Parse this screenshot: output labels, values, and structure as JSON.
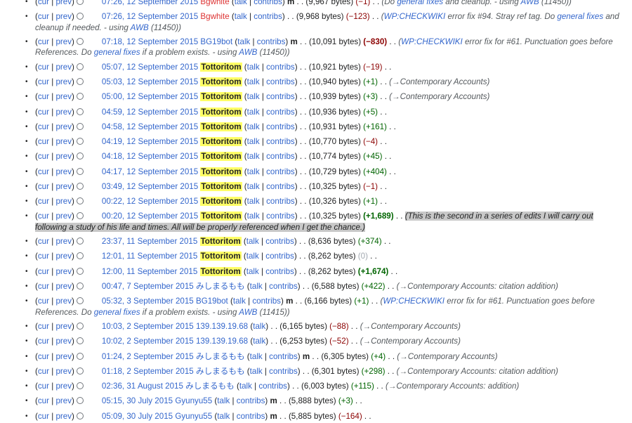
{
  "history": [
    {
      "cur": "cur",
      "prev": "prev",
      "time": "07:26, 12 September 2015",
      "user": "Bgwhite",
      "user_style": "red",
      "talk": "talk",
      "contribs": "contribs",
      "minor": "m",
      "size": "(9,967 bytes)",
      "diff": "(−1)",
      "diff_class": "neg",
      "summary": [
        {
          "t": "(Do "
        },
        {
          "t": "general fixes",
          "link": true
        },
        {
          "t": " and cleanup. - using "
        },
        {
          "t": "AWB",
          "link": true
        },
        {
          "t": " (11450))"
        }
      ]
    },
    {
      "cur": "cur",
      "prev": "prev",
      "time": "07:26, 12 September 2015",
      "user": "Bgwhite",
      "user_style": "red",
      "talk": "talk",
      "contribs": "contribs",
      "minor": "",
      "size": "(9,968 bytes)",
      "diff": "(−123)",
      "diff_class": "neg",
      "tall": true,
      "summary": [
        {
          "t": "("
        },
        {
          "t": "WP:CHECKWIKI",
          "link": true
        },
        {
          "t": " error fix #94. Stray ref tag. Do "
        },
        {
          "t": "general fixes",
          "link": true
        },
        {
          "t": " and cleanup if needed. - using "
        },
        {
          "t": "AWB",
          "link": true
        },
        {
          "t": " (11450))"
        }
      ]
    },
    {
      "cur": "cur",
      "prev": "prev",
      "time": "07:18, 12 September 2015",
      "user": "BG19bot",
      "user_style": "blue",
      "talk": "talk",
      "contribs": "contribs",
      "minor": "m",
      "size": "(10,091 bytes)",
      "diff": "(−830)",
      "diff_class": "bigneg",
      "tall": true,
      "summary": [
        {
          "t": "("
        },
        {
          "t": "WP:CHECKWIKI",
          "link": true
        },
        {
          "t": " error fix for #61. Punctuation goes before References. Do "
        },
        {
          "t": "general fixes",
          "link": true
        },
        {
          "t": " if a problem exists. - using "
        },
        {
          "t": "AWB",
          "link": true
        },
        {
          "t": " (11450))"
        }
      ]
    },
    {
      "cur": "cur",
      "prev": "prev",
      "time": "05:07, 12 September 2015",
      "user": "Tottoritom",
      "user_style": "hl",
      "talk": "talk",
      "contribs": "contribs",
      "minor": "",
      "size": "(10,921 bytes)",
      "diff": "(−19)",
      "diff_class": "neg",
      "summary": []
    },
    {
      "cur": "cur",
      "prev": "prev",
      "time": "05:03, 12 September 2015",
      "user": "Tottoritom",
      "user_style": "hl",
      "talk": "talk",
      "contribs": "contribs",
      "minor": "",
      "size": "(10,940 bytes)",
      "diff": "(+1)",
      "diff_class": "pos",
      "summary": [
        {
          "t": "(→Contemporary Accounts)"
        }
      ]
    },
    {
      "cur": "cur",
      "prev": "prev",
      "time": "05:00, 12 September 2015",
      "user": "Tottoritom",
      "user_style": "hl",
      "talk": "talk",
      "contribs": "contribs",
      "minor": "",
      "size": "(10,939 bytes)",
      "diff": "(+3)",
      "diff_class": "pos",
      "summary": [
        {
          "t": "(→Contemporary Accounts)"
        }
      ]
    },
    {
      "cur": "cur",
      "prev": "prev",
      "time": "04:59, 12 September 2015",
      "user": "Tottoritom",
      "user_style": "hl",
      "talk": "talk",
      "contribs": "contribs",
      "minor": "",
      "size": "(10,936 bytes)",
      "diff": "(+5)",
      "diff_class": "pos",
      "summary": []
    },
    {
      "cur": "cur",
      "prev": "prev",
      "time": "04:58, 12 September 2015",
      "user": "Tottoritom",
      "user_style": "hl",
      "talk": "talk",
      "contribs": "contribs",
      "minor": "",
      "size": "(10,931 bytes)",
      "diff": "(+161)",
      "diff_class": "pos",
      "summary": []
    },
    {
      "cur": "cur",
      "prev": "prev",
      "time": "04:19, 12 September 2015",
      "user": "Tottoritom",
      "user_style": "hl",
      "talk": "talk",
      "contribs": "contribs",
      "minor": "",
      "size": "(10,770 bytes)",
      "diff": "(−4)",
      "diff_class": "neg",
      "summary": []
    },
    {
      "cur": "cur",
      "prev": "prev",
      "time": "04:18, 12 September 2015",
      "user": "Tottoritom",
      "user_style": "hl",
      "talk": "talk",
      "contribs": "contribs",
      "minor": "",
      "size": "(10,774 bytes)",
      "diff": "(+45)",
      "diff_class": "pos",
      "summary": []
    },
    {
      "cur": "cur",
      "prev": "prev",
      "time": "04:17, 12 September 2015",
      "user": "Tottoritom",
      "user_style": "hl",
      "talk": "talk",
      "contribs": "contribs",
      "minor": "",
      "size": "(10,729 bytes)",
      "diff": "(+404)",
      "diff_class": "pos",
      "summary": []
    },
    {
      "cur": "cur",
      "prev": "prev",
      "time": "03:49, 12 September 2015",
      "user": "Tottoritom",
      "user_style": "hl",
      "talk": "talk",
      "contribs": "contribs",
      "minor": "",
      "size": "(10,325 bytes)",
      "diff": "(−1)",
      "diff_class": "neg",
      "summary": []
    },
    {
      "cur": "cur",
      "prev": "prev",
      "time": "00:22, 12 September 2015",
      "user": "Tottoritom",
      "user_style": "hl",
      "talk": "talk",
      "contribs": "contribs",
      "minor": "",
      "size": "(10,326 bytes)",
      "diff": "(+1)",
      "diff_class": "pos",
      "summary": []
    },
    {
      "cur": "cur",
      "prev": "prev",
      "time": "00:20, 12 September 2015",
      "user": "Tottoritom",
      "user_style": "hl",
      "talk": "talk",
      "contribs": "contribs",
      "minor": "",
      "size": "(10,325 bytes)",
      "diff": "(+1,689)",
      "diff_class": "bigpos",
      "tall": true,
      "summary": [
        {
          "t": "(This is the second in a series of edits I will carry out following a study of his life and times. All will be properly referenced when I get the chance.)",
          "sel": true
        }
      ]
    },
    {
      "cur": "cur",
      "prev": "prev",
      "time": "23:37, 11 September 2015",
      "user": "Tottoritom",
      "user_style": "hl",
      "talk": "talk",
      "contribs": "contribs",
      "minor": "",
      "size": "(8,636 bytes)",
      "diff": "(+374)",
      "diff_class": "pos",
      "summary": []
    },
    {
      "cur": "cur",
      "prev": "prev",
      "time": "12:01, 11 September 2015",
      "user": "Tottoritom",
      "user_style": "hl",
      "talk": "talk",
      "contribs": "contribs",
      "minor": "",
      "size": "(8,262 bytes)",
      "diff": "(0)",
      "diff_class": "zero",
      "summary": []
    },
    {
      "cur": "cur",
      "prev": "prev",
      "time": "12:00, 11 September 2015",
      "user": "Tottoritom",
      "user_style": "hl",
      "talk": "talk",
      "contribs": "contribs",
      "minor": "",
      "size": "(8,262 bytes)",
      "diff": "(+1,674)",
      "diff_class": "bigpos",
      "summary": []
    },
    {
      "cur": "cur",
      "prev": "prev",
      "time": "00:47, 7 September 2015",
      "user": "みしまるもも",
      "user_style": "faint",
      "talk": "talk",
      "contribs": "contribs",
      "minor": "",
      "size": "(6,588 bytes)",
      "diff": "(+422)",
      "diff_class": "pos",
      "summary": [
        {
          "t": "(→Contemporary Accounts: citation addition)"
        }
      ]
    },
    {
      "cur": "cur",
      "prev": "prev",
      "time": "05:32, 3 September 2015",
      "user": "BG19bot",
      "user_style": "blue",
      "talk": "talk",
      "contribs": "contribs",
      "minor": "m",
      "size": "(6,166 bytes)",
      "diff": "(+1)",
      "diff_class": "pos",
      "tall": true,
      "summary": [
        {
          "t": "("
        },
        {
          "t": "WP:CHECKWIKI",
          "link": true
        },
        {
          "t": " error fix for #61. Punctuation goes before References. Do "
        },
        {
          "t": "general fixes",
          "link": true
        },
        {
          "t": " if a problem exists. - using "
        },
        {
          "t": "AWB",
          "link": true
        },
        {
          "t": " (11415))"
        }
      ]
    },
    {
      "cur": "cur",
      "prev": "prev",
      "time": "10:03, 2 September 2015",
      "user": "139.139.19.68",
      "user_style": "blue",
      "talk": "talk",
      "contribs": "",
      "minor": "",
      "size": "(6,165 bytes)",
      "diff": "(−88)",
      "diff_class": "neg",
      "summary": [
        {
          "t": "(→Contemporary Accounts)"
        }
      ]
    },
    {
      "cur": "cur",
      "prev": "prev",
      "time": "10:02, 2 September 2015",
      "user": "139.139.19.68",
      "user_style": "blue",
      "talk": "talk",
      "contribs": "",
      "minor": "",
      "size": "(6,253 bytes)",
      "diff": "(−52)",
      "diff_class": "neg",
      "summary": [
        {
          "t": "(→Contemporary Accounts)"
        }
      ]
    },
    {
      "cur": "cur",
      "prev": "prev",
      "time": "01:24, 2 September 2015",
      "user": "みしまるもも",
      "user_style": "faint",
      "talk": "talk",
      "contribs": "contribs",
      "minor": "m",
      "size": "(6,305 bytes)",
      "diff": "(+4)",
      "diff_class": "pos",
      "summary": [
        {
          "t": "(→Contemporary Accounts)"
        }
      ]
    },
    {
      "cur": "cur",
      "prev": "prev",
      "time": "01:18, 2 September 2015",
      "user": "みしまるもも",
      "user_style": "faint",
      "talk": "talk",
      "contribs": "contribs",
      "minor": "",
      "size": "(6,301 bytes)",
      "diff": "(+298)",
      "diff_class": "pos",
      "summary": [
        {
          "t": "(→Contemporary Accounts: citation addition)"
        }
      ]
    },
    {
      "cur": "cur",
      "prev": "prev",
      "time": "02:36, 31 August 2015",
      "user": "みしまるもも",
      "user_style": "faint",
      "talk": "talk",
      "contribs": "contribs",
      "minor": "",
      "size": "(6,003 bytes)",
      "diff": "(+115)",
      "diff_class": "pos",
      "summary": [
        {
          "t": "(→Contemporary Accounts: addition)"
        }
      ]
    },
    {
      "cur": "cur",
      "prev": "prev",
      "time": "05:15, 30 July 2015",
      "user": "Gyunyu55",
      "user_style": "blue",
      "talk": "talk",
      "contribs": "contribs",
      "minor": "m",
      "size": "(5,888 bytes)",
      "diff": "(+3)",
      "diff_class": "pos",
      "summary": []
    },
    {
      "cur": "cur",
      "prev": "prev",
      "time": "05:09, 30 July 2015",
      "user": "Gyunyu55",
      "user_style": "blue",
      "talk": "talk",
      "contribs": "contribs",
      "minor": "m",
      "size": "(5,885 bytes)",
      "diff": "(−164)",
      "diff_class": "neg",
      "summary": []
    }
  ]
}
